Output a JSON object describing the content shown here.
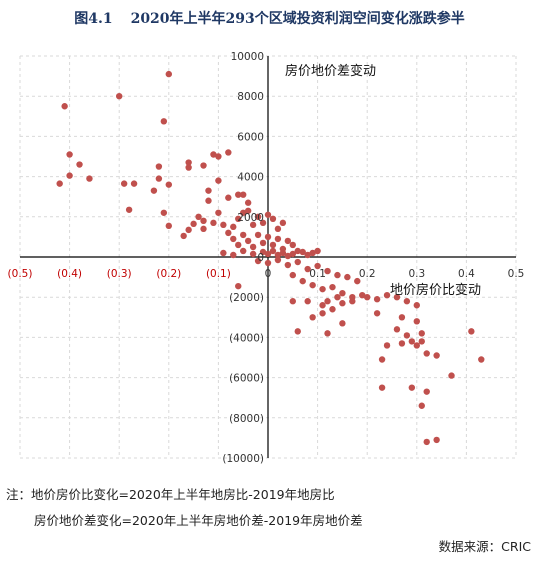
{
  "figure_label": "图4.1",
  "title": "2020年上半年293个区域投资利润空间变化涨跌参半",
  "notes": [
    "注：地价房价比变化=2020年上半年地房比-2019年地房比",
    "房价地价差变化=2020年上半年房地价差-2019年房地价差"
  ],
  "source": "数据来源：CRIC",
  "chart_data": {
    "type": "scatter",
    "title": "2020年上半年293个区域投资利润空间变化涨跌参半",
    "xlabel": "地价房价比变动",
    "ylabel": "房价地价差变动",
    "xlim": [
      -0.5,
      0.5
    ],
    "ylim": [
      -10000,
      10000
    ],
    "x_ticks": [
      -0.5,
      -0.4,
      -0.3,
      -0.2,
      -0.1,
      0,
      0.1,
      0.2,
      0.3,
      0.4,
      0.5
    ],
    "x_tick_labels": [
      "(0.5)",
      "(0.4)",
      "(0.3)",
      "(0.2)",
      "(0.1)",
      "0",
      "0.1",
      "0.2",
      "0.3",
      "0.4",
      "0.5"
    ],
    "y_ticks": [
      -10000,
      -8000,
      -6000,
      -4000,
      -2000,
      0,
      2000,
      4000,
      6000,
      8000,
      10000
    ],
    "y_tick_labels": [
      "(10000)",
      "(8000)",
      "(6000)",
      "(4000)",
      "(2000)",
      "0",
      "2000",
      "4000",
      "6000",
      "8000",
      "10000"
    ],
    "grid": true,
    "marker_color": "#c0504d",
    "negative_label_color": "#c00000",
    "points": [
      [
        -0.41,
        7500
      ],
      [
        -0.3,
        8000
      ],
      [
        -0.2,
        9100
      ],
      [
        -0.21,
        6750
      ],
      [
        -0.4,
        5100
      ],
      [
        -0.38,
        4600
      ],
      [
        -0.4,
        4050
      ],
      [
        -0.42,
        3650
      ],
      [
        -0.36,
        3900
      ],
      [
        -0.29,
        3650
      ],
      [
        -0.27,
        3650
      ],
      [
        -0.28,
        2350
      ],
      [
        -0.22,
        4500
      ],
      [
        -0.22,
        3900
      ],
      [
        -0.23,
        3300
      ],
      [
        -0.2,
        3600
      ],
      [
        -0.21,
        2200
      ],
      [
        -0.2,
        1550
      ],
      [
        -0.17,
        1050
      ],
      [
        -0.16,
        4700
      ],
      [
        -0.16,
        4450
      ],
      [
        -0.13,
        4550
      ],
      [
        -0.11,
        5100
      ],
      [
        -0.1,
        5000
      ],
      [
        -0.08,
        5200
      ],
      [
        -0.1,
        3800
      ],
      [
        -0.12,
        3300
      ],
      [
        -0.12,
        2800
      ],
      [
        -0.08,
        2950
      ],
      [
        -0.06,
        3100
      ],
      [
        -0.05,
        3100
      ],
      [
        -0.04,
        2700
      ],
      [
        -0.14,
        2000
      ],
      [
        -0.13,
        1800
      ],
      [
        -0.15,
        1650
      ],
      [
        -0.16,
        1350
      ],
      [
        -0.13,
        1400
      ],
      [
        -0.11,
        1700
      ],
      [
        -0.1,
        2200
      ],
      [
        -0.09,
        1600
      ],
      [
        -0.08,
        1200
      ],
      [
        -0.07,
        1500
      ],
      [
        -0.06,
        1900
      ],
      [
        -0.05,
        2200
      ],
      [
        -0.04,
        2300
      ],
      [
        -0.03,
        1600
      ],
      [
        -0.02,
        2000
      ],
      [
        -0.01,
        1700
      ],
      [
        0.0,
        2100
      ],
      [
        0.01,
        1900
      ],
      [
        0.02,
        1400
      ],
      [
        0.03,
        1700
      ],
      [
        -0.07,
        900
      ],
      [
        -0.06,
        600
      ],
      [
        -0.05,
        1100
      ],
      [
        -0.04,
        800
      ],
      [
        -0.03,
        500
      ],
      [
        -0.02,
        1100
      ],
      [
        -0.01,
        700
      ],
      [
        0.0,
        1000
      ],
      [
        0.01,
        600
      ],
      [
        0.02,
        900
      ],
      [
        0.03,
        400
      ],
      [
        0.04,
        800
      ],
      [
        0.05,
        600
      ],
      [
        0.06,
        300
      ],
      [
        -0.09,
        200
      ],
      [
        -0.07,
        100
      ],
      [
        -0.05,
        300
      ],
      [
        -0.03,
        150
      ],
      [
        -0.01,
        250
      ],
      [
        0.0,
        150
      ],
      [
        0.01,
        300
      ],
      [
        0.02,
        100
      ],
      [
        0.03,
        200
      ],
      [
        0.04,
        50
      ],
      [
        0.05,
        150
      ],
      [
        0.07,
        250
      ],
      [
        0.08,
        100
      ],
      [
        0.09,
        200
      ],
      [
        0.1,
        300
      ],
      [
        -0.02,
        -200
      ],
      [
        0.0,
        -300
      ],
      [
        0.02,
        -150
      ],
      [
        0.04,
        -400
      ],
      [
        0.06,
        -250
      ],
      [
        0.08,
        -600
      ],
      [
        0.1,
        -450
      ],
      [
        0.12,
        -700
      ],
      [
        0.14,
        -900
      ],
      [
        0.16,
        -1000
      ],
      [
        0.18,
        -1200
      ],
      [
        -0.06,
        -1450
      ],
      [
        0.05,
        -900
      ],
      [
        0.07,
        -1200
      ],
      [
        0.09,
        -1400
      ],
      [
        0.11,
        -1600
      ],
      [
        0.13,
        -1500
      ],
      [
        0.15,
        -1800
      ],
      [
        0.17,
        -2000
      ],
      [
        0.19,
        -1900
      ],
      [
        0.12,
        -2200
      ],
      [
        0.14,
        -2000
      ],
      [
        0.11,
        -2400
      ],
      [
        0.13,
        -2600
      ],
      [
        0.15,
        -2300
      ],
      [
        0.17,
        -2200
      ],
      [
        0.05,
        -2200
      ],
      [
        0.08,
        -2200
      ],
      [
        0.09,
        -3000
      ],
      [
        0.11,
        -2800
      ],
      [
        0.15,
        -3300
      ],
      [
        0.2,
        -2000
      ],
      [
        0.22,
        -2100
      ],
      [
        0.24,
        -1900
      ],
      [
        0.26,
        -2000
      ],
      [
        0.28,
        -2200
      ],
      [
        0.3,
        -2400
      ],
      [
        0.22,
        -2800
      ],
      [
        0.27,
        -3000
      ],
      [
        0.3,
        -3200
      ],
      [
        0.26,
        -3600
      ],
      [
        0.28,
        -3900
      ],
      [
        0.27,
        -4300
      ],
      [
        0.29,
        -4200
      ],
      [
        0.3,
        -4400
      ],
      [
        0.31,
        -4200
      ],
      [
        0.24,
        -4400
      ],
      [
        0.23,
        -5100
      ],
      [
        0.31,
        -3800
      ],
      [
        0.06,
        -3700
      ],
      [
        0.12,
        -3800
      ],
      [
        0.32,
        -4800
      ],
      [
        0.34,
        -4900
      ],
      [
        0.41,
        -3700
      ],
      [
        0.43,
        -5100
      ],
      [
        0.37,
        -5900
      ],
      [
        0.23,
        -6500
      ],
      [
        0.29,
        -6500
      ],
      [
        0.32,
        -6700
      ],
      [
        0.31,
        -7400
      ],
      [
        0.32,
        -9200
      ],
      [
        0.34,
        -9100
      ]
    ]
  }
}
